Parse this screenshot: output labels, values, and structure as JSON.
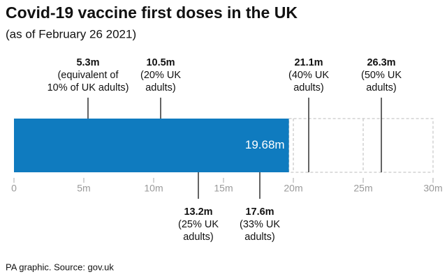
{
  "chart_data": {
    "type": "bar",
    "title": "Covid-19 vaccine first doses in the UK",
    "subtitle": "(as of February 26 2021)",
    "source": "PA graphic. Source: gov.uk",
    "values": [
      19.68
    ],
    "value_labels": [
      "19.68m"
    ],
    "color": "#0f7bbf",
    "xlim": [
      0,
      30
    ],
    "xticks": [
      0,
      {
        "value": 5,
        "label": "5m"
      },
      {
        "value": 10,
        "label": "10m"
      },
      {
        "value": 15,
        "label": "15m"
      },
      {
        "value": 20,
        "label": "20m"
      },
      {
        "value": 25,
        "label": "25m"
      },
      {
        "value": 30,
        "label": "30m"
      }
    ],
    "annotations": [
      {
        "value": 5.3,
        "label": "5.3m",
        "note": [
          "(equivalent of",
          "10% of UK adults)"
        ],
        "position": "above"
      },
      {
        "value": 10.5,
        "label": "10.5m",
        "note": [
          "(20% UK",
          "adults)"
        ],
        "position": "above"
      },
      {
        "value": 13.2,
        "label": "13.2m",
        "note": [
          "(25% UK",
          "adults)"
        ],
        "position": "below"
      },
      {
        "value": 17.6,
        "label": "17.6m",
        "note": [
          "(33% UK",
          "adults)"
        ],
        "position": "below"
      },
      {
        "value": 21.1,
        "label": "21.1m",
        "note": [
          "(40% UK",
          "adults)"
        ],
        "position": "above"
      },
      {
        "value": 26.3,
        "label": "26.3m",
        "note": [
          "(50% UK",
          "adults)"
        ],
        "position": "above"
      }
    ]
  }
}
